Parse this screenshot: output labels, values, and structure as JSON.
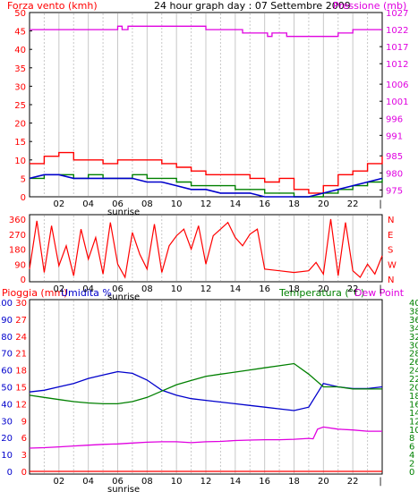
{
  "header": {
    "title": "24 hour graph day : 07 Settembre 2009",
    "left_label": "Forza vento (kmh)",
    "right_label": "Pressione (mb)"
  },
  "colors": {
    "red": "#ff0000",
    "magenta": "#e000e0",
    "green": "#008000",
    "blue": "#0000cc",
    "grid": "#c8c8c8",
    "frame": "#000000"
  },
  "x_axis": {
    "tick_labels": [
      "02",
      "04",
      "06",
      "08",
      "10",
      "12",
      "14",
      "16",
      "18",
      "20",
      "22"
    ],
    "sunrise_label": "sunrise"
  },
  "chart_data": [
    {
      "type": "line",
      "name": "wind-pressure",
      "x_range": [
        0,
        24
      ],
      "left_axis": {
        "label": "Forza vento (kmh)",
        "ylim": [
          0,
          50
        ],
        "ticks": [
          0,
          5,
          10,
          15,
          20,
          25,
          30,
          35,
          40,
          45,
          50
        ]
      },
      "right_axis": {
        "label": "Pressione (mb)",
        "ylim": [
          973,
          1027
        ],
        "ticks": [
          975,
          980,
          985,
          991,
          996,
          1001,
          1006,
          1012,
          1017,
          1022,
          1027
        ]
      },
      "series": [
        {
          "axis": "right",
          "color": "#e000e0",
          "x": [
            0,
            6.0,
            6.0,
            6.3,
            6.3,
            6.7,
            6.7,
            7.2,
            7.2,
            12.0,
            12.0,
            14.5,
            14.5,
            16.2,
            16.2,
            16.5,
            16.5,
            17.5,
            17.5,
            21.0,
            21.0,
            22.0,
            22.0,
            24
          ],
          "y": [
            1022,
            1022,
            1023,
            1023,
            1022,
            1022,
            1023,
            1023,
            1023,
            1023,
            1022,
            1022,
            1021,
            1021,
            1020,
            1020,
            1021,
            1021,
            1020,
            1020,
            1021,
            1021,
            1022,
            1022
          ]
        },
        {
          "axis": "left",
          "color": "#ff0000",
          "x": [
            0,
            1,
            2,
            3,
            4,
            5,
            6,
            7,
            8,
            9,
            10,
            11,
            12,
            13,
            14,
            15,
            16,
            17,
            18,
            19,
            20,
            21,
            22,
            23,
            24
          ],
          "y": [
            9,
            11,
            12,
            10,
            10,
            9,
            10,
            10,
            10,
            9,
            8,
            7,
            6,
            6,
            6,
            5,
            4,
            5,
            2,
            1,
            3,
            6,
            7,
            9,
            11
          ]
        },
        {
          "axis": "left",
          "color": "#008000",
          "x": [
            0,
            1,
            2,
            3,
            4,
            5,
            6,
            7,
            8,
            9,
            10,
            11,
            12,
            13,
            14,
            15,
            16,
            17,
            18,
            19,
            20,
            21,
            22,
            23,
            24
          ],
          "y": [
            5,
            6,
            6,
            5,
            6,
            5,
            5,
            6,
            5,
            5,
            4,
            3,
            3,
            3,
            2,
            2,
            1,
            1,
            0,
            0,
            1,
            2,
            3,
            4,
            5
          ]
        },
        {
          "axis": "left",
          "color": "#0000cc",
          "x": [
            0,
            1,
            2,
            3,
            4,
            5,
            6,
            7,
            8,
            9,
            10,
            11,
            12,
            13,
            14,
            15,
            16,
            17,
            18,
            19,
            20,
            21,
            22,
            23,
            24
          ],
          "y": [
            5,
            6,
            6,
            5,
            5,
            5,
            5,
            5,
            4,
            4,
            3,
            2,
            2,
            1,
            1,
            1,
            0,
            0,
            0,
            0,
            1,
            2,
            3,
            4,
            5
          ]
        }
      ]
    },
    {
      "type": "line",
      "name": "wind-direction",
      "x_range": [
        0,
        24
      ],
      "left_axis": {
        "ylim": [
          0,
          360
        ],
        "ticks": [
          0,
          90,
          180,
          270,
          360
        ]
      },
      "right_axis": {
        "ticks": [
          "N",
          "E",
          "S",
          "W",
          "N"
        ]
      },
      "series": [
        {
          "color": "#ff0000",
          "x": [
            0,
            0.5,
            1,
            1.5,
            2,
            2.5,
            3,
            3.5,
            4,
            4.5,
            5,
            5.5,
            6,
            6.5,
            7,
            7.5,
            8,
            8.5,
            9,
            9.5,
            10,
            10.5,
            11,
            11.5,
            12,
            12.5,
            13,
            13.5,
            14,
            14.5,
            15,
            15.5,
            16,
            17,
            18,
            19,
            19.5,
            20,
            20.5,
            21,
            21.5,
            22,
            22.5,
            23,
            23.5,
            24
          ],
          "y": [
            60,
            350,
            40,
            320,
            80,
            200,
            20,
            300,
            120,
            250,
            30,
            340,
            90,
            10,
            280,
            150,
            60,
            330,
            40,
            200,
            260,
            300,
            180,
            320,
            90,
            260,
            300,
            340,
            250,
            200,
            270,
            300,
            60,
            50,
            40,
            50,
            100,
            30,
            360,
            20,
            340,
            50,
            10,
            90,
            30,
            140
          ]
        }
      ]
    },
    {
      "type": "line",
      "name": "rain-humidity-temperature",
      "x_range": [
        0,
        24
      ],
      "left_axis_1": {
        "label": "Pioggia (mm)",
        "ylim": [
          0,
          30
        ],
        "ticks": [
          0,
          3,
          6,
          9,
          12,
          15,
          18,
          21,
          24,
          27,
          30
        ]
      },
      "left_axis_2": {
        "label": "Umidita %",
        "ylim": [
          0,
          100
        ],
        "ticks": [
          0,
          10,
          20,
          30,
          40,
          50,
          60,
          70,
          80,
          90,
          100
        ]
      },
      "right_axis": {
        "label": "Temperatura (°C)",
        "label_2": "Dew Point",
        "ylim": [
          0,
          40
        ],
        "ticks": [
          0,
          2,
          4,
          6,
          8,
          10,
          12,
          14,
          16,
          18,
          20,
          22,
          24,
          26,
          28,
          30,
          32,
          34,
          36,
          38,
          40
        ]
      },
      "series": [
        {
          "axis": "humidity",
          "color": "#0000cc",
          "x": [
            0,
            1,
            2,
            3,
            4,
            5,
            6,
            7,
            8,
            9,
            10,
            11,
            12,
            13,
            14,
            15,
            16,
            17,
            18,
            19,
            20,
            21,
            22,
            23,
            24
          ],
          "y": [
            47,
            48,
            50,
            52,
            55,
            57,
            59,
            58,
            54,
            48,
            45,
            43,
            42,
            41,
            40,
            39,
            38,
            37,
            36,
            38,
            52,
            50,
            49,
            49,
            50
          ]
        },
        {
          "axis": "temperature",
          "color": "#008000",
          "x": [
            0,
            1,
            2,
            3,
            4,
            5,
            6,
            7,
            8,
            9,
            10,
            11,
            12,
            13,
            14,
            15,
            16,
            17,
            18,
            19,
            20,
            21,
            22,
            23,
            24
          ],
          "y": [
            18,
            17.5,
            17,
            16.5,
            16.2,
            16,
            16,
            16.5,
            17.5,
            19,
            20.5,
            21.5,
            22.5,
            23,
            23.5,
            24,
            24.5,
            25,
            25.5,
            23,
            20,
            20,
            19.5,
            19.5,
            19.5
          ]
        },
        {
          "axis": "temperature",
          "color": "#e000e0",
          "x": [
            0,
            1,
            2,
            3,
            4,
            5,
            6,
            7,
            8,
            9,
            10,
            11,
            12,
            13,
            14,
            15,
            16,
            17,
            18,
            19,
            19.3,
            19.6,
            20,
            21,
            22,
            23,
            24
          ],
          "y": [
            5.5,
            5.6,
            5.8,
            6.0,
            6.2,
            6.4,
            6.5,
            6.7,
            6.9,
            7.0,
            7.0,
            6.8,
            7.0,
            7.1,
            7.3,
            7.4,
            7.5,
            7.5,
            7.6,
            7.8,
            7.7,
            10,
            10.5,
            10.0,
            9.8,
            9.5,
            9.5
          ]
        },
        {
          "axis": "rain",
          "color": "#ff0000",
          "x": [
            0,
            24
          ],
          "y": [
            0,
            0
          ]
        }
      ]
    }
  ],
  "panel3": {
    "label_rain": "Pioggia (mm)",
    "label_humidity": "Umidita %",
    "label_temp": "Temperatura (°C)",
    "label_dew": "Dew Point"
  }
}
